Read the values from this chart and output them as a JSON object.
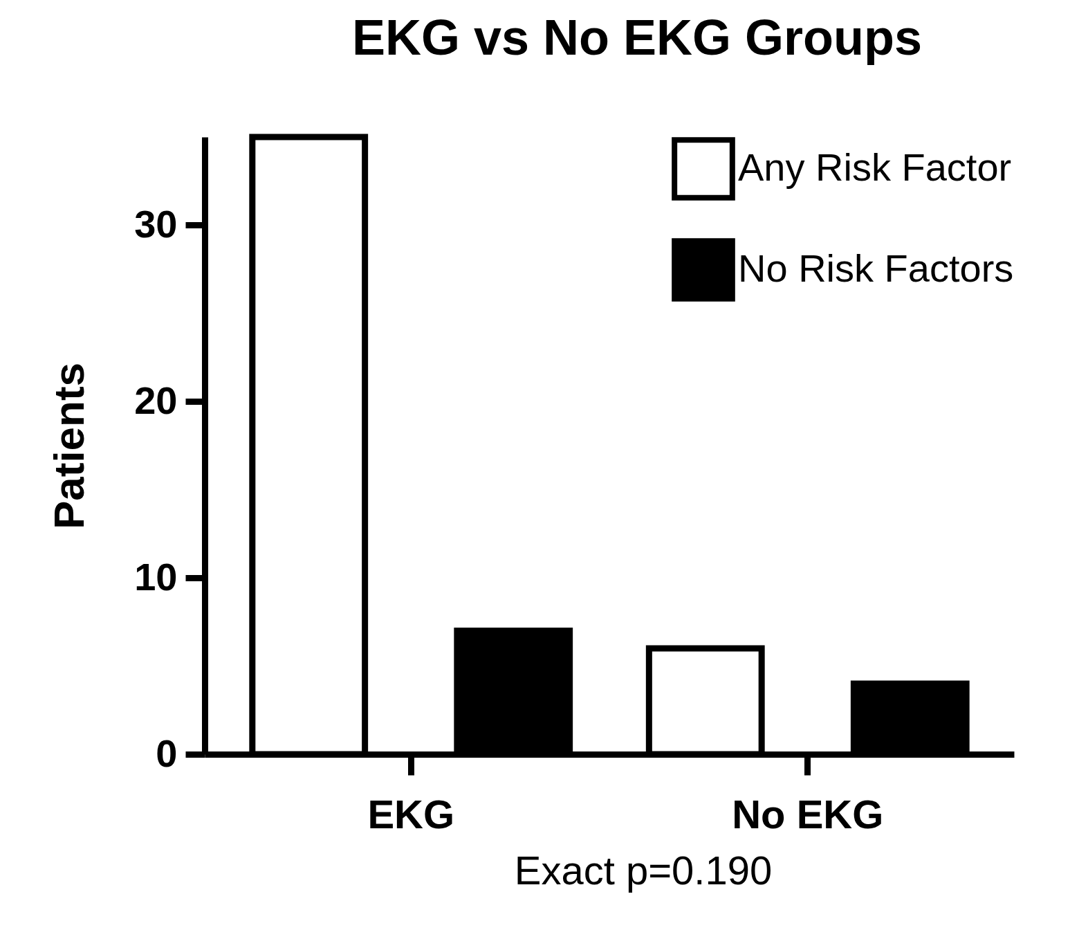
{
  "chart_data": {
    "type": "bar",
    "title": "EKG vs No EKG Groups",
    "ylabel": "Patients",
    "categories": [
      "EKG",
      "No EKG"
    ],
    "series": [
      {
        "name": "Any Risk Factor",
        "color": "#ffffff",
        "values": [
          35,
          6
        ]
      },
      {
        "name": "No Risk Factors",
        "color": "#000000",
        "values": [
          7,
          4
        ]
      }
    ],
    "ylim": [
      0,
      35
    ],
    "yticks": [
      0,
      10,
      20,
      30
    ],
    "grid": false,
    "legend": "top right",
    "annotations": [
      "Exact p=0.190"
    ]
  }
}
